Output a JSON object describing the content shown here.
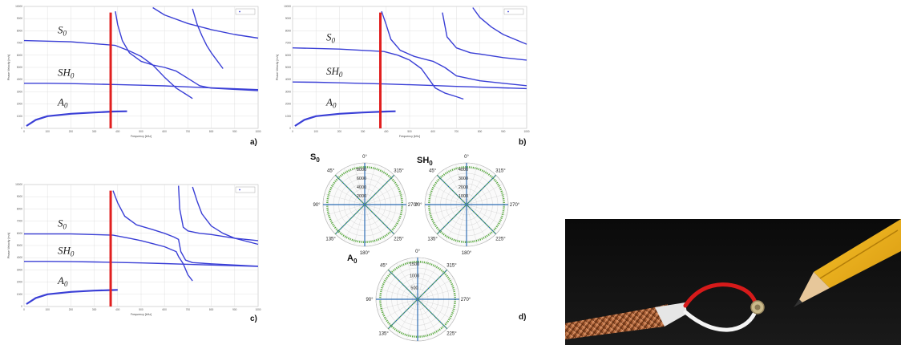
{
  "panel_labels": {
    "a": "a)",
    "b": "b)",
    "c": "c)",
    "d": "d)"
  },
  "dispersion_axes": {
    "xlabel": "Frequency [kHz]",
    "ylabel": "Phase Velocity [m/s]",
    "xlim": [
      0,
      1000
    ],
    "ylim": [
      0,
      10000
    ],
    "xticks": [
      "0",
      "100",
      "200",
      "300",
      "400",
      "500",
      "600",
      "700",
      "800",
      "900",
      "1000"
    ],
    "yticks": [
      "0",
      "1000",
      "2000",
      "3000",
      "4000",
      "5000",
      "6000",
      "7000",
      "8000",
      "9000",
      "10000"
    ]
  },
  "mode_labels": {
    "S": "S",
    "S_sub": "0",
    "SH": "SH",
    "SH_sub": "0",
    "A": "A",
    "A_sub": "0"
  },
  "polar": {
    "S0": {
      "title": "S",
      "sub": "0",
      "rings": [
        "2000",
        "4000",
        "6000",
        "8000"
      ]
    },
    "SH0": {
      "title": "SH",
      "sub": "0",
      "rings": [
        "1000",
        "2000",
        "3000",
        "4000"
      ]
    },
    "A0": {
      "title": "A",
      "sub": "0",
      "rings": [
        "500",
        "1000",
        "1500"
      ]
    },
    "angles": [
      "0°",
      "45°",
      "90°",
      "135°",
      "180°",
      "225°",
      "270°",
      "315°"
    ]
  },
  "chart_data": [
    {
      "type": "line",
      "panel": "a",
      "xlabel": "Frequency [kHz]",
      "ylabel": "Phase Velocity [m/s]",
      "xlim": [
        0,
        1000
      ],
      "ylim": [
        0,
        10000
      ],
      "grid": true,
      "legend": "top-right",
      "marker_frequency": 370,
      "series": [
        {
          "x": [
            10,
            50,
            100,
            200,
            300,
            380,
            440
          ],
          "y": [
            200,
            700,
            1000,
            1200,
            1300,
            1380,
            1400
          ]
        },
        {
          "x": [
            0,
            100,
            200,
            300,
            400,
            500,
            600,
            700,
            800,
            900,
            1000
          ],
          "y": [
            3700,
            3700,
            3670,
            3630,
            3590,
            3540,
            3490,
            3400,
            3320,
            3250,
            3180
          ]
        },
        {
          "x": [
            0,
            200,
            390,
            450,
            500,
            550,
            600,
            650,
            700,
            720
          ],
          "y": [
            7200,
            7100,
            6800,
            6350,
            5900,
            5200,
            4200,
            3300,
            2700,
            2450
          ]
        },
        {
          "x": [
            390,
            400,
            420,
            450,
            500,
            550,
            600,
            650,
            700,
            750,
            800,
            900,
            1000
          ],
          "y": [
            9600,
            8500,
            7200,
            6200,
            5500,
            5200,
            5000,
            4700,
            4100,
            3500,
            3300,
            3200,
            3100
          ]
        },
        {
          "x": [
            550,
            600,
            700,
            800,
            900,
            1000
          ],
          "y": [
            9900,
            9300,
            8600,
            8100,
            7700,
            7400
          ]
        },
        {
          "x": [
            720,
            740,
            760,
            780,
            800,
            850
          ],
          "y": [
            9800,
            8500,
            7600,
            6800,
            6200,
            4900
          ]
        }
      ]
    },
    {
      "type": "line",
      "panel": "b",
      "xlabel": "Frequency [kHz]",
      "ylabel": "Phase Velocity [m/s]",
      "xlim": [
        0,
        1000
      ],
      "ylim": [
        0,
        10000
      ],
      "grid": true,
      "legend": "top-right",
      "marker_frequency": 375,
      "series": [
        {
          "x": [
            10,
            50,
            100,
            200,
            300,
            400,
            440
          ],
          "y": [
            200,
            700,
            1000,
            1200,
            1300,
            1380,
            1400
          ]
        },
        {
          "x": [
            0,
            100,
            200,
            300,
            400,
            500,
            600,
            700,
            800,
            900,
            1000
          ],
          "y": [
            3800,
            3780,
            3740,
            3690,
            3640,
            3580,
            3510,
            3440,
            3380,
            3320,
            3260
          ]
        },
        {
          "x": [
            0,
            200,
            390,
            450,
            500,
            550,
            580,
            610,
            650,
            700,
            730
          ],
          "y": [
            6600,
            6500,
            6300,
            6000,
            5600,
            4900,
            4100,
            3300,
            2900,
            2600,
            2400
          ]
        },
        {
          "x": [
            380,
            400,
            420,
            460,
            520,
            560,
            600,
            650,
            700,
            800,
            900,
            1000
          ],
          "y": [
            9600,
            8500,
            7300,
            6400,
            5900,
            5700,
            5500,
            5000,
            4300,
            3900,
            3700,
            3500
          ]
        },
        {
          "x": [
            640,
            660,
            700,
            760,
            800,
            900,
            1000
          ],
          "y": [
            9500,
            7500,
            6600,
            6200,
            6100,
            5800,
            5600
          ]
        },
        {
          "x": [
            770,
            800,
            850,
            900,
            1000
          ],
          "y": [
            9900,
            9100,
            8300,
            7700,
            6900
          ]
        }
      ]
    },
    {
      "type": "line",
      "panel": "c",
      "xlabel": "Frequency [kHz]",
      "ylabel": "Phase Velocity [m/s]",
      "xlim": [
        0,
        1000
      ],
      "ylim": [
        0,
        10000
      ],
      "grid": true,
      "legend": "top-right",
      "marker_frequency": 370,
      "series": [
        {
          "x": [
            10,
            50,
            100,
            200,
            300,
            380,
            400
          ],
          "y": [
            200,
            700,
            1000,
            1200,
            1300,
            1350,
            1360
          ]
        },
        {
          "x": [
            0,
            100,
            200,
            300,
            400,
            500,
            600,
            700,
            800,
            900,
            1000
          ],
          "y": [
            3700,
            3700,
            3680,
            3650,
            3610,
            3570,
            3520,
            3460,
            3400,
            3340,
            3280
          ]
        },
        {
          "x": [
            0,
            200,
            380,
            450,
            500,
            550,
            600,
            650,
            660,
            680,
            700,
            720
          ],
          "y": [
            5950,
            5950,
            5850,
            5600,
            5400,
            5150,
            4900,
            4500,
            4100,
            3500,
            2600,
            2100
          ]
        },
        {
          "x": [
            380,
            400,
            430,
            480,
            550,
            600,
            640,
            660,
            670,
            690,
            720,
            800,
            900,
            1000
          ],
          "y": [
            9500,
            8500,
            7400,
            6700,
            6300,
            6000,
            5700,
            5500,
            4500,
            3800,
            3600,
            3500,
            3400,
            3300
          ]
        },
        {
          "x": [
            660,
            665,
            680,
            700,
            750,
            800,
            900,
            1000
          ],
          "y": [
            9900,
            8000,
            6500,
            6200,
            6000,
            5900,
            5600,
            5400
          ]
        },
        {
          "x": [
            720,
            740,
            760,
            800,
            850,
            900,
            1000
          ],
          "y": [
            9800,
            8600,
            7600,
            6600,
            6000,
            5600,
            5100
          ]
        }
      ]
    }
  ],
  "colors": {
    "curve": "#3a3fd6",
    "marker": "#e11f1f",
    "grid": "#d9d9d9",
    "polar_green": "#55a83a",
    "polar_blue": "#2f6db5"
  }
}
